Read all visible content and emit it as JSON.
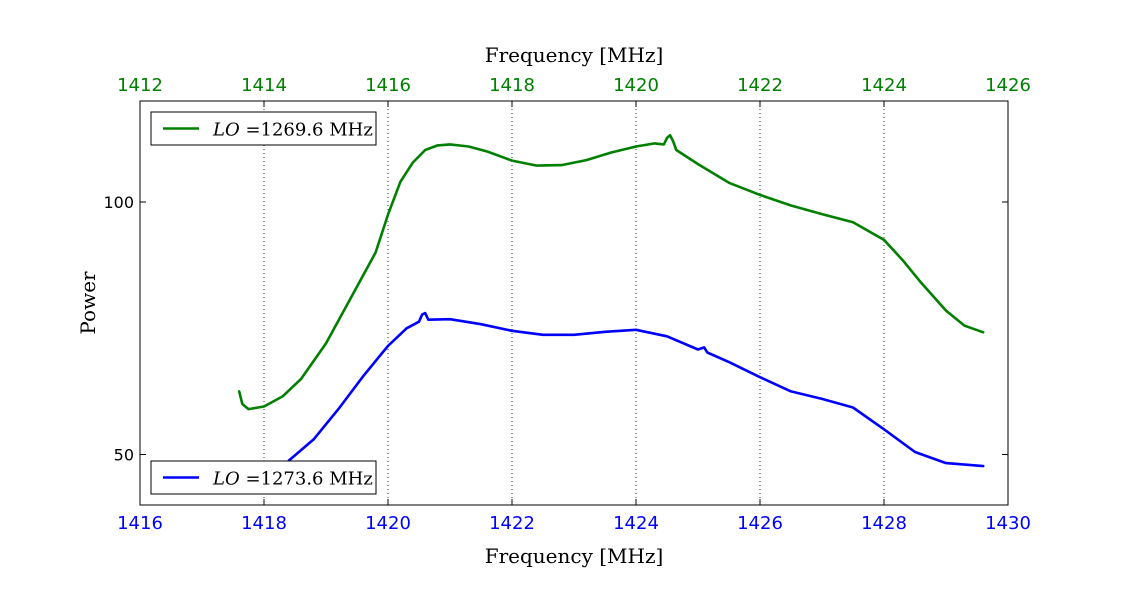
{
  "chart_data": {
    "type": "line",
    "title": "",
    "ylabel": "Power",
    "ylim": [
      40,
      120
    ],
    "yticks": [
      50,
      100
    ],
    "grid": "vertical dotted at bottom-axis major ticks",
    "axes": {
      "bottom": {
        "label": "Frequency [MHz]",
        "range": [
          1416,
          1430
        ],
        "ticks": [
          1416,
          1418,
          1420,
          1422,
          1424,
          1426,
          1428,
          1430
        ],
        "color": "#0000ff"
      },
      "top": {
        "label": "Frequency [MHz]",
        "range": [
          1412,
          1426
        ],
        "ticks": [
          1412,
          1414,
          1416,
          1418,
          1420,
          1422,
          1424,
          1426
        ],
        "color": "#008000"
      }
    },
    "series": [
      {
        "name": "LO = 1269.6 MHz",
        "legend_var": "LO",
        "legend_eq": "=",
        "legend_val": "1269.6 MHz",
        "legend_position": "top-left",
        "color": "#008000",
        "x_axis": "top",
        "points": [
          [
            1413.6,
            62.5
          ],
          [
            1413.65,
            60.0
          ],
          [
            1413.75,
            59.0
          ],
          [
            1414.0,
            59.5
          ],
          [
            1414.3,
            61.5
          ],
          [
            1414.6,
            65.0
          ],
          [
            1415.0,
            72.0
          ],
          [
            1415.4,
            81.0
          ],
          [
            1415.8,
            90.0
          ],
          [
            1416.0,
            97.5
          ],
          [
            1416.2,
            104.0
          ],
          [
            1416.4,
            107.8
          ],
          [
            1416.6,
            110.3
          ],
          [
            1416.8,
            111.2
          ],
          [
            1417.0,
            111.4
          ],
          [
            1417.3,
            111.0
          ],
          [
            1417.6,
            110.0
          ],
          [
            1418.0,
            108.2
          ],
          [
            1418.4,
            107.2
          ],
          [
            1418.8,
            107.3
          ],
          [
            1419.2,
            108.3
          ],
          [
            1419.6,
            109.8
          ],
          [
            1420.0,
            111.0
          ],
          [
            1420.3,
            111.6
          ],
          [
            1420.45,
            111.4
          ],
          [
            1420.5,
            112.7
          ],
          [
            1420.55,
            113.2
          ],
          [
            1420.6,
            112.0
          ],
          [
            1420.65,
            110.3
          ],
          [
            1421.0,
            107.5
          ],
          [
            1421.5,
            103.8
          ],
          [
            1422.0,
            101.4
          ],
          [
            1422.5,
            99.3
          ],
          [
            1423.0,
            97.6
          ],
          [
            1423.5,
            96.0
          ],
          [
            1424.0,
            92.5
          ],
          [
            1424.3,
            88.5
          ],
          [
            1424.6,
            84.0
          ],
          [
            1425.0,
            78.5
          ],
          [
            1425.3,
            75.5
          ],
          [
            1425.6,
            74.2
          ]
        ]
      },
      {
        "name": "LO = 1273.6 MHz",
        "legend_var": "LO",
        "legend_eq": "=",
        "legend_val": "1273.6 MHz",
        "legend_position": "bottom-left",
        "color": "#0000ff",
        "x_axis": "bottom",
        "points": [
          [
            1418.4,
            48.8
          ],
          [
            1418.8,
            53.0
          ],
          [
            1419.2,
            59.0
          ],
          [
            1419.6,
            65.5
          ],
          [
            1420.0,
            71.5
          ],
          [
            1420.3,
            75.0
          ],
          [
            1420.5,
            76.3
          ],
          [
            1420.55,
            77.7
          ],
          [
            1420.6,
            78.0
          ],
          [
            1420.65,
            76.7
          ],
          [
            1421.0,
            76.8
          ],
          [
            1421.5,
            75.8
          ],
          [
            1422.0,
            74.5
          ],
          [
            1422.5,
            73.7
          ],
          [
            1423.0,
            73.7
          ],
          [
            1423.5,
            74.3
          ],
          [
            1424.0,
            74.7
          ],
          [
            1424.5,
            73.4
          ],
          [
            1425.0,
            70.8
          ],
          [
            1425.1,
            71.2
          ],
          [
            1425.15,
            70.2
          ],
          [
            1425.5,
            68.3
          ],
          [
            1426.0,
            65.3
          ],
          [
            1426.5,
            62.5
          ],
          [
            1427.0,
            61.0
          ],
          [
            1427.5,
            59.3
          ],
          [
            1428.0,
            55.0
          ],
          [
            1428.5,
            50.5
          ],
          [
            1429.0,
            48.3
          ],
          [
            1429.6,
            47.7
          ]
        ]
      }
    ]
  }
}
